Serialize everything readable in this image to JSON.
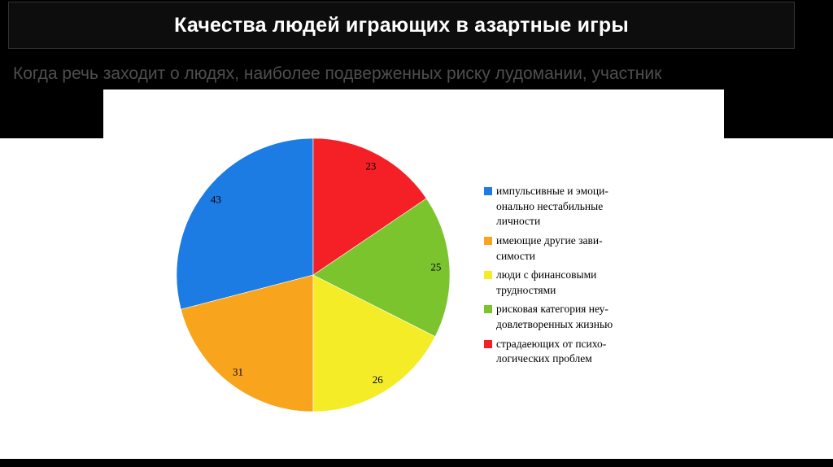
{
  "slide": {
    "title": "Качества людей играющих в азартные игры",
    "intro": "Когда речь заходит о людях, наиболее подверженных риску лудомании, участник"
  },
  "chart_data": {
    "type": "pie",
    "title": "",
    "categories": [
      "импульсивные и эмоци-\nонально нестабильные\nличности",
      "имеющие другие зави-\nсимости",
      "люди с финансовыми\nтрудностями",
      "рисковая категория неу-\nдовлетворенных жизнью",
      "страдаеющих от психо-\nлогических проблем"
    ],
    "values": [
      43,
      31,
      26,
      25,
      23
    ],
    "colors": [
      "#1d7ce4",
      "#f8a41c",
      "#f5ec28",
      "#7cc42d",
      "#f42025"
    ],
    "legend_position": "right",
    "start_angle_deg": -90,
    "direction": "counterclockwise",
    "label_color": "#000000"
  }
}
